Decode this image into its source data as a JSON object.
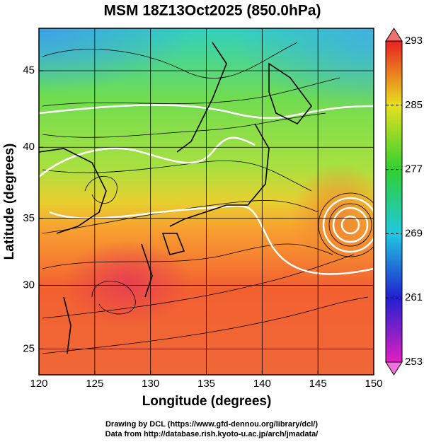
{
  "title": "MSM 18Z13Oct2025 (850.0hPa)",
  "x_axis": {
    "label": "Longitude (degrees)",
    "lim": [
      120,
      150
    ],
    "ticks": [
      120,
      125,
      130,
      135,
      140,
      145,
      150
    ]
  },
  "y_axis": {
    "label": "Latitude  (degrees)",
    "lim": [
      22.9,
      47.6
    ],
    "ticks": [
      25,
      30,
      35,
      40,
      45
    ],
    "projection": "mercator"
  },
  "colorbar": {
    "lim": [
      253,
      293
    ],
    "ticks": [
      253,
      261,
      269,
      277,
      285,
      293
    ]
  },
  "credits": [
    "Drawing by DCL (https://www.gfd-dennou.org/library/dcl/)",
    "Data from http://database.rish.kyoto-u.ac.jp/arch/jmadata/"
  ]
}
